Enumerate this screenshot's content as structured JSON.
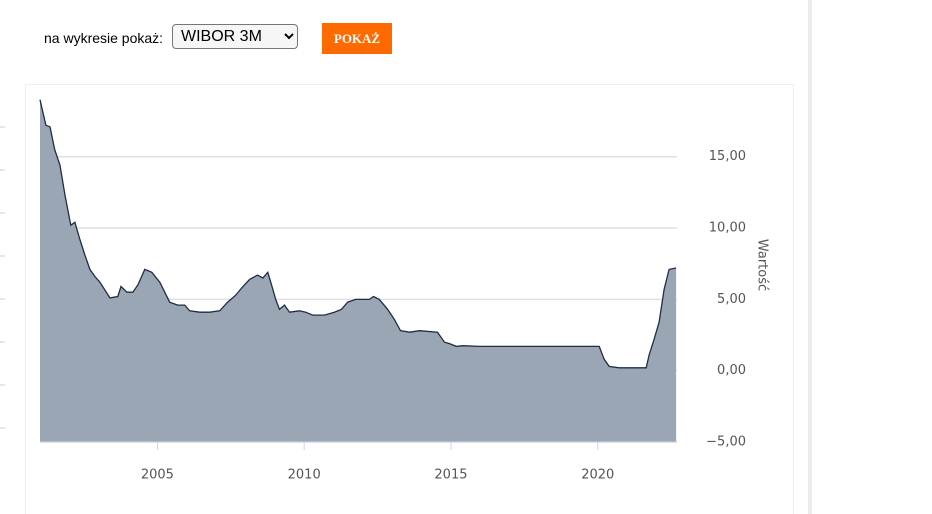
{
  "controls": {
    "label": "na wykresie pokaż:",
    "select": "WIBOR 3M",
    "button": "POKAŻ"
  },
  "chart_data": {
    "type": "area",
    "y_label": "Wartość",
    "x": [
      2001.0,
      2001.2,
      2001.34,
      2001.5,
      2001.68,
      2001.85,
      2002.05,
      2002.19,
      2002.36,
      2002.53,
      2002.7,
      2002.87,
      2003.04,
      2003.38,
      2003.65,
      2003.76,
      2003.96,
      2004.16,
      2004.33,
      2004.57,
      2004.81,
      2005.08,
      2005.42,
      2005.69,
      2005.93,
      2006.1,
      2006.44,
      2006.78,
      2007.12,
      2007.39,
      2007.67,
      2007.87,
      2008.14,
      2008.41,
      2008.59,
      2008.76,
      2008.89,
      2009.03,
      2009.16,
      2009.33,
      2009.5,
      2009.84,
      2010.05,
      2010.29,
      2010.69,
      2011.03,
      2011.27,
      2011.48,
      2011.75,
      2011.95,
      2012.22,
      2012.36,
      2012.56,
      2012.84,
      2013.07,
      2013.28,
      2013.59,
      2013.93,
      2014.54,
      2014.78,
      2014.95,
      2015.18,
      2015.39,
      2015.97,
      2016.31,
      2016.65,
      2018.0,
      2020.05,
      2020.22,
      2020.39,
      2020.73,
      2021.65,
      2021.75,
      2021.92,
      2022.09,
      2022.26,
      2022.43,
      2022.67
    ],
    "values": [
      19.0,
      17.2,
      17.1,
      15.5,
      14.4,
      12.3,
      10.2,
      10.4,
      9.2,
      8.1,
      7.1,
      6.6,
      6.2,
      5.1,
      5.2,
      5.9,
      5.5,
      5.5,
      6.0,
      7.1,
      6.9,
      6.2,
      4.8,
      4.6,
      4.6,
      4.2,
      4.1,
      4.1,
      4.2,
      4.8,
      5.3,
      5.8,
      6.4,
      6.7,
      6.5,
      6.9,
      6.0,
      5.0,
      4.3,
      4.6,
      4.1,
      4.2,
      4.1,
      3.9,
      3.9,
      4.1,
      4.3,
      4.8,
      5.0,
      5.0,
      5.0,
      5.2,
      5.0,
      4.3,
      3.6,
      2.8,
      2.7,
      2.8,
      2.7,
      2.0,
      1.9,
      1.7,
      1.75,
      1.7,
      1.7,
      1.7,
      1.7,
      1.7,
      0.8,
      0.3,
      0.2,
      0.2,
      1.1,
      2.2,
      3.4,
      5.7,
      7.1,
      7.2
    ],
    "color": "#9aa6b4",
    "line_color": "#1f2d45",
    "xlim": [
      2001.0,
      2022.7
    ],
    "xticks": [
      2005,
      2010,
      2015,
      2020
    ],
    "ylim": [
      -5,
      20
    ],
    "yticks": [
      {
        "value": -5,
        "label": "−5,00"
      },
      {
        "value": 0,
        "label": "0,00"
      },
      {
        "value": 5,
        "label": "5,00"
      },
      {
        "value": 10,
        "label": "10,00"
      },
      {
        "value": 15,
        "label": "15,00"
      }
    ],
    "grid": true
  }
}
